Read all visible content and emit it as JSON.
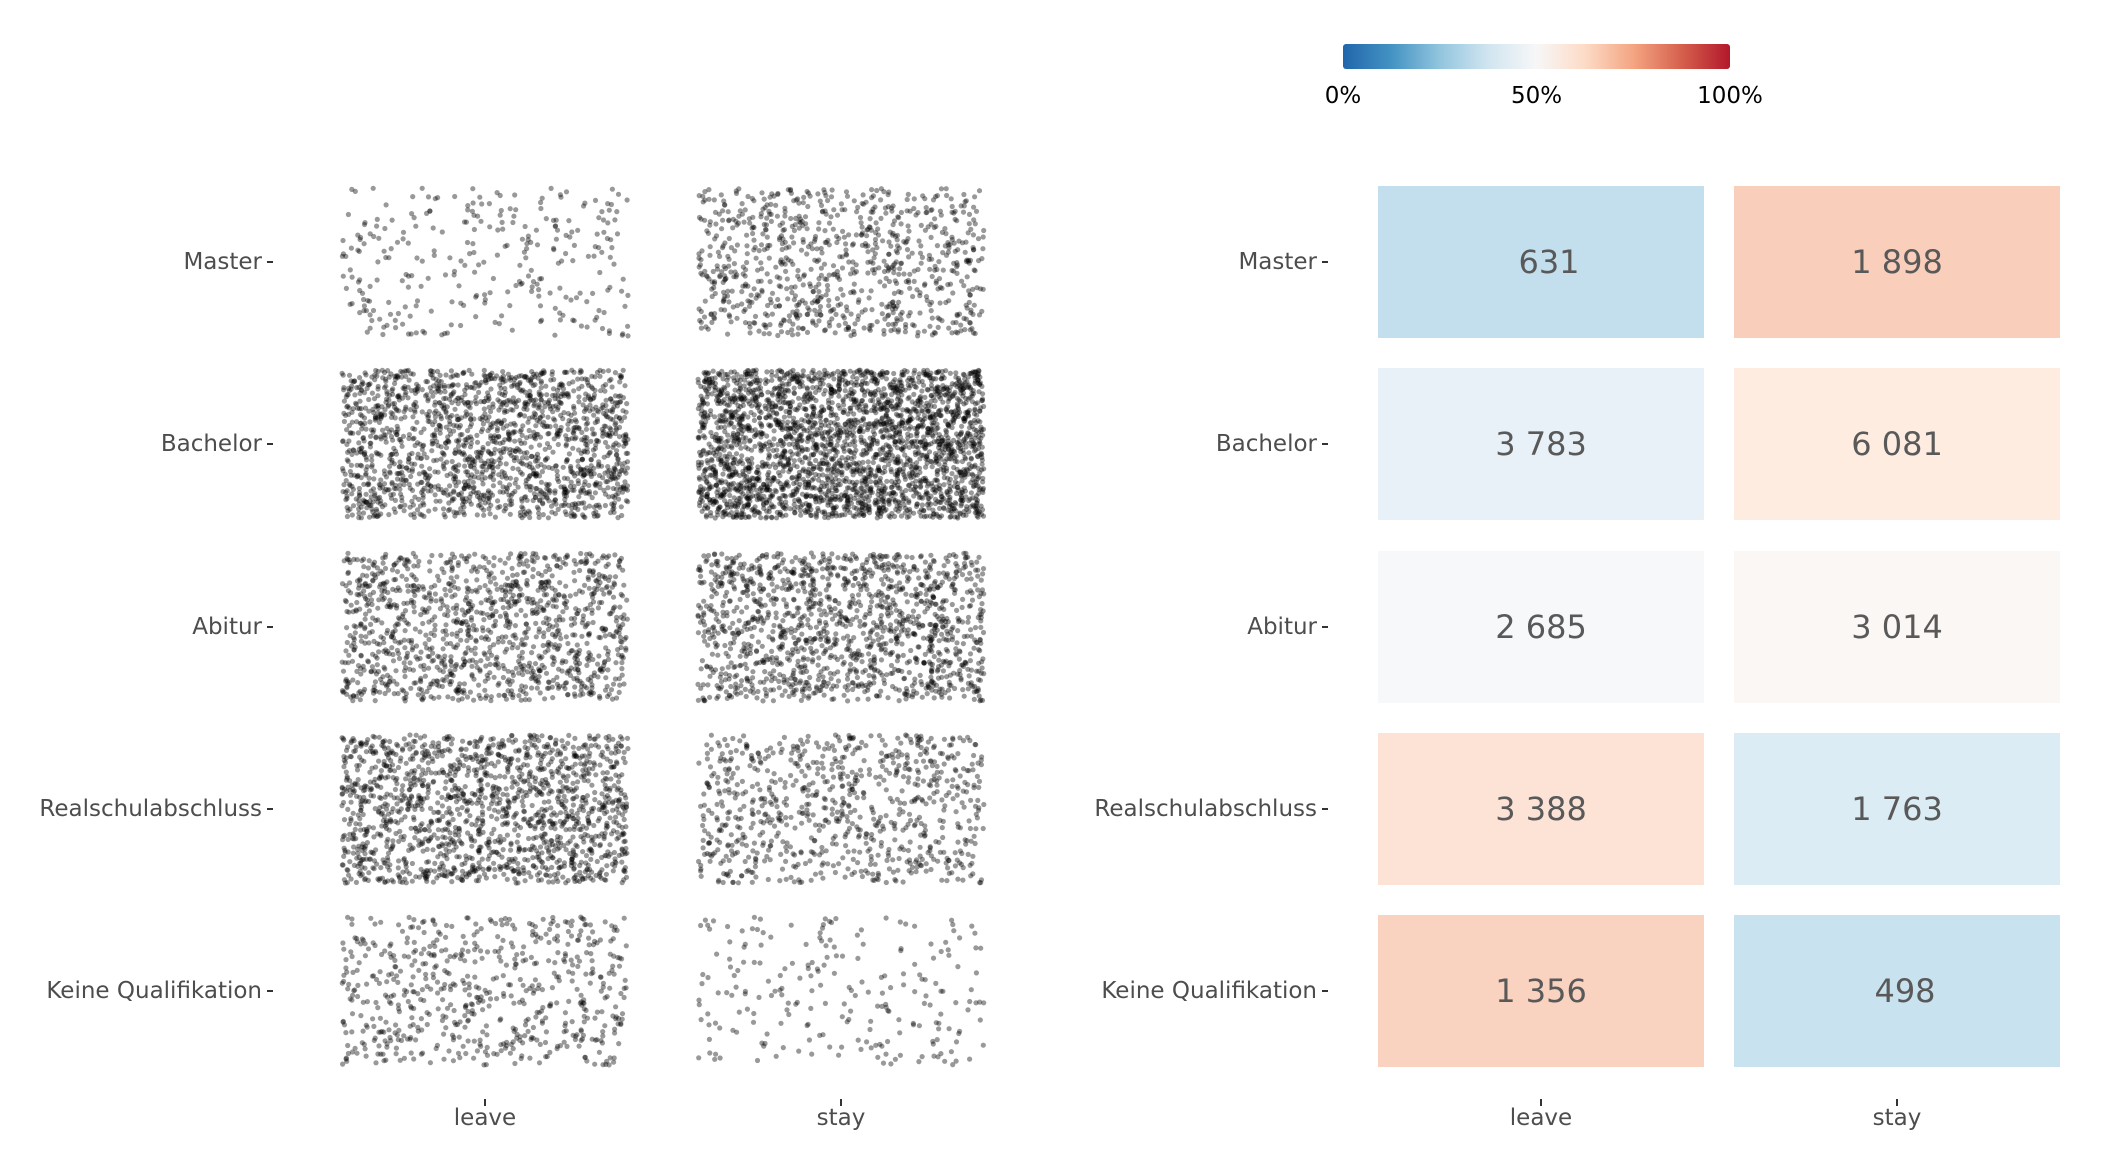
{
  "chart_data": [
    {
      "type": "scatter",
      "subtype": "jitter",
      "categories_y": [
        "Master",
        "Bachelor",
        "Abitur",
        "Realschulabschluss",
        "Keine Qualifikation"
      ],
      "categories_x": [
        "leave",
        "stay"
      ],
      "cells": [
        {
          "row": "Master",
          "col": "leave",
          "count": 631
        },
        {
          "row": "Master",
          "col": "stay",
          "count": 1898
        },
        {
          "row": "Bachelor",
          "col": "leave",
          "count": 3783
        },
        {
          "row": "Bachelor",
          "col": "stay",
          "count": 6081
        },
        {
          "row": "Abitur",
          "col": "leave",
          "count": 2685
        },
        {
          "row": "Abitur",
          "col": "stay",
          "count": 3014
        },
        {
          "row": "Realschulabschluss",
          "col": "leave",
          "count": 3388
        },
        {
          "row": "Realschulabschluss",
          "col": "stay",
          "count": 1763
        },
        {
          "row": "Keine Qualifikation",
          "col": "leave",
          "count": 1356
        },
        {
          "row": "Keine Qualifikation",
          "col": "stay",
          "count": 498
        }
      ],
      "point_color": "#000000"
    },
    {
      "type": "heatmap",
      "categories_y": [
        "Master",
        "Bachelor",
        "Abitur",
        "Realschulabschluss",
        "Keine Qualifikation"
      ],
      "categories_x": [
        "leave",
        "stay"
      ],
      "cells": [
        {
          "row": "Master",
          "col": "leave",
          "value": 631,
          "label": "631",
          "share": 0.25
        },
        {
          "row": "Master",
          "col": "stay",
          "value": 1898,
          "label": "1 898",
          "share": 0.75
        },
        {
          "row": "Bachelor",
          "col": "leave",
          "value": 3783,
          "label": "3 783",
          "share": 0.38
        },
        {
          "row": "Bachelor",
          "col": "stay",
          "value": 6081,
          "label": "6 081",
          "share": 0.62
        },
        {
          "row": "Abitur",
          "col": "leave",
          "value": 2685,
          "label": "2 685",
          "share": 0.47
        },
        {
          "row": "Abitur",
          "col": "stay",
          "value": 3014,
          "label": "3 014",
          "share": 0.53
        },
        {
          "row": "Realschulabschluss",
          "col": "leave",
          "value": 3388,
          "label": "3 388",
          "share": 0.66
        },
        {
          "row": "Realschulabschluss",
          "col": "stay",
          "value": 1763,
          "label": "1 763",
          "share": 0.34
        },
        {
          "row": "Keine Qualifikation",
          "col": "leave",
          "value": 1356,
          "label": "1 356",
          "share": 0.73
        },
        {
          "row": "Keine Qualifikation",
          "col": "stay",
          "value": 498,
          "label": "498",
          "share": 0.27
        }
      ],
      "colorbar": {
        "tick_labels": [
          "0%",
          "50%",
          "100%"
        ],
        "colors": [
          "#2166ac",
          "#4393c3",
          "#92c5de",
          "#d1e5f0",
          "#f7f7f7",
          "#fddbc7",
          "#f4a582",
          "#d6604d",
          "#b2182b"
        ]
      }
    }
  ]
}
